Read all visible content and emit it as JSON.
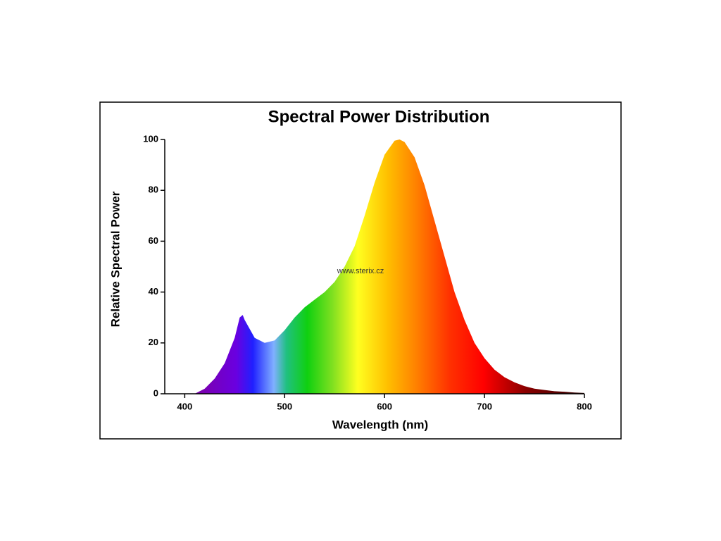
{
  "chart_data": {
    "type": "area",
    "title": "Spectral Power Distribution",
    "x_label": "Wavelength (nm)",
    "y_label": "Relative Spectral Power",
    "annotation": "www.sterix.cz",
    "x": [
      410,
      420,
      430,
      440,
      450,
      455,
      458,
      460,
      470,
      480,
      490,
      500,
      510,
      520,
      530,
      540,
      550,
      560,
      570,
      580,
      590,
      600,
      610,
      615,
      620,
      630,
      640,
      650,
      660,
      670,
      680,
      690,
      700,
      710,
      720,
      730,
      740,
      750,
      760,
      770,
      780,
      790,
      800
    ],
    "values": [
      0,
      2,
      6,
      12,
      22,
      30,
      31,
      29,
      22,
      20,
      21,
      25,
      30,
      34,
      37,
      40,
      44,
      50,
      58,
      70,
      83,
      94,
      99.5,
      100,
      99,
      93,
      82,
      68,
      54,
      40,
      29,
      20,
      14,
      9.5,
      6.5,
      4.5,
      3,
      2,
      1.5,
      1,
      0.8,
      0.5,
      0.3
    ],
    "xlim": [
      380,
      800
    ],
    "xticks": [
      400,
      500,
      600,
      700,
      800
    ],
    "ylim": [
      0,
      100
    ],
    "yticks": [
      0,
      20,
      40,
      60,
      80,
      100
    ]
  }
}
